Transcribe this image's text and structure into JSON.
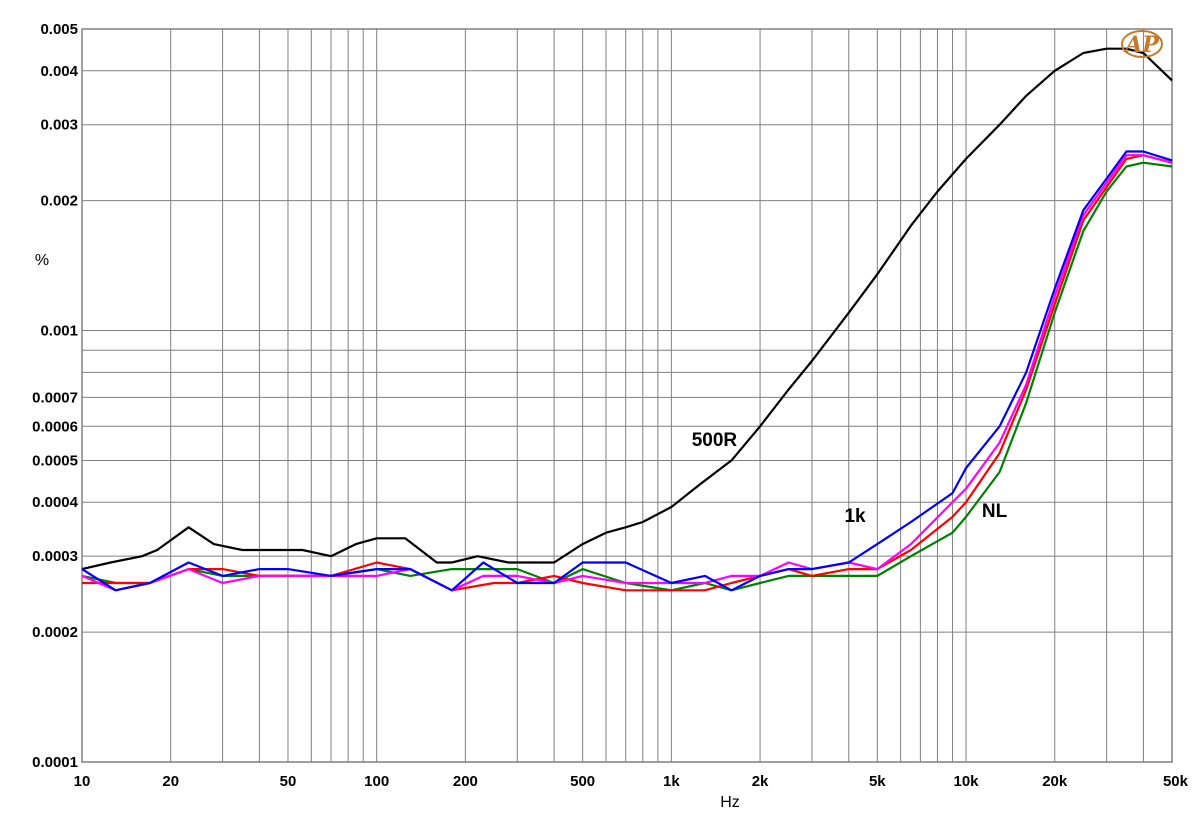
{
  "chart_data": {
    "type": "line",
    "title": "",
    "xlabel": "Hz",
    "ylabel": "%",
    "x_scale": "log",
    "y_scale": "log",
    "xlim": [
      10,
      50000
    ],
    "ylim": [
      0.0001,
      0.005
    ],
    "grid": true,
    "legend": "none",
    "x_ticks": [
      {
        "value": 10,
        "label": "10"
      },
      {
        "value": 20,
        "label": "20"
      },
      {
        "value": 50,
        "label": "50"
      },
      {
        "value": 100,
        "label": "100"
      },
      {
        "value": 200,
        "label": "200"
      },
      {
        "value": 500,
        "label": "500"
      },
      {
        "value": 1000,
        "label": "1k"
      },
      {
        "value": 2000,
        "label": "2k"
      },
      {
        "value": 5000,
        "label": "5k"
      },
      {
        "value": 10000,
        "label": "10k"
      },
      {
        "value": 20000,
        "label": "20k"
      },
      {
        "value": 50000,
        "label": "50k"
      }
    ],
    "y_ticks": [
      {
        "value": 0.005,
        "label": "0.005"
      },
      {
        "value": 0.004,
        "label": "0.004"
      },
      {
        "value": 0.003,
        "label": "0.003"
      },
      {
        "value": 0.002,
        "label": "0.002"
      },
      {
        "value": 0.001,
        "label": "0.001"
      },
      {
        "value": 0.0007,
        "label": "0.0007"
      },
      {
        "value": 0.0006,
        "label": "0.0006"
      },
      {
        "value": 0.0005,
        "label": "0.0005"
      },
      {
        "value": 0.0004,
        "label": "0.0004"
      },
      {
        "value": 0.0003,
        "label": "0.0003"
      },
      {
        "value": 0.0002,
        "label": "0.0002"
      },
      {
        "value": 0.0001,
        "label": "0.0001"
      }
    ],
    "series": [
      {
        "name": "500R",
        "color": "#000000",
        "x": [
          10,
          12.5,
          16,
          18,
          23,
          28,
          35,
          40,
          50,
          56,
          70,
          85,
          100,
          125,
          160,
          180,
          220,
          280,
          350,
          400,
          500,
          600,
          700,
          800,
          1000,
          1250,
          1600,
          2000,
          2500,
          3000,
          4000,
          5000,
          6500,
          8000,
          10000,
          13000,
          16000,
          20000,
          25000,
          30000,
          35000,
          40000,
          50000
        ],
        "y": [
          0.00028,
          0.00029,
          0.0003,
          0.00031,
          0.00035,
          0.00032,
          0.00031,
          0.00031,
          0.00031,
          0.00031,
          0.0003,
          0.00032,
          0.00033,
          0.00033,
          0.00029,
          0.00029,
          0.0003,
          0.00029,
          0.00029,
          0.00029,
          0.00032,
          0.00034,
          0.00035,
          0.00036,
          0.00039,
          0.00044,
          0.0005,
          0.0006,
          0.00073,
          0.00085,
          0.0011,
          0.00135,
          0.00175,
          0.0021,
          0.0025,
          0.003,
          0.0035,
          0.004,
          0.0044,
          0.0045,
          0.0045,
          0.0044,
          0.0038
        ]
      },
      {
        "name": "NL",
        "color": "#008000",
        "x": [
          10,
          13,
          17,
          23,
          30,
          40,
          50,
          70,
          100,
          130,
          180,
          250,
          300,
          400,
          500,
          700,
          1000,
          1300,
          1600,
          2000,
          2500,
          3000,
          4000,
          5000,
          6500,
          9000,
          10000,
          13000,
          16000,
          20000,
          25000,
          30000,
          35000,
          40000,
          50000
        ],
        "y": [
          0.00027,
          0.00026,
          0.00026,
          0.00028,
          0.00027,
          0.00027,
          0.00027,
          0.00027,
          0.00028,
          0.00027,
          0.00028,
          0.00028,
          0.00028,
          0.00026,
          0.00028,
          0.00026,
          0.00025,
          0.00026,
          0.00025,
          0.00026,
          0.00027,
          0.00027,
          0.00027,
          0.00027,
          0.0003,
          0.00034,
          0.00037,
          0.00047,
          0.00068,
          0.0011,
          0.0017,
          0.0021,
          0.0024,
          0.00245,
          0.0024
        ]
      },
      {
        "name": "red",
        "color": "#ff0000",
        "x": [
          10,
          13,
          17,
          23,
          30,
          40,
          50,
          70,
          100,
          130,
          180,
          250,
          300,
          400,
          500,
          700,
          1000,
          1300,
          1600,
          2000,
          2500,
          3000,
          4000,
          5000,
          6500,
          9000,
          10000,
          13000,
          16000,
          20000,
          25000,
          30000,
          35000,
          40000,
          50000
        ],
        "y": [
          0.00026,
          0.00026,
          0.00026,
          0.00028,
          0.00028,
          0.00027,
          0.00027,
          0.00027,
          0.00029,
          0.00028,
          0.00025,
          0.00026,
          0.00026,
          0.00027,
          0.00026,
          0.00025,
          0.00025,
          0.00025,
          0.00026,
          0.00027,
          0.00028,
          0.00027,
          0.00028,
          0.00028,
          0.00031,
          0.00037,
          0.0004,
          0.00052,
          0.00073,
          0.00115,
          0.0018,
          0.00215,
          0.0025,
          0.00255,
          0.00245
        ]
      },
      {
        "name": "magenta",
        "color": "#ff00ff",
        "x": [
          10,
          13,
          17,
          23,
          30,
          40,
          50,
          70,
          100,
          130,
          180,
          230,
          300,
          400,
          500,
          700,
          1000,
          1300,
          1600,
          2000,
          2500,
          3000,
          4000,
          5000,
          6500,
          9000,
          10000,
          13000,
          16000,
          20000,
          25000,
          30000,
          35000,
          40000,
          50000
        ],
        "y": [
          0.00027,
          0.00025,
          0.00026,
          0.00028,
          0.00026,
          0.00027,
          0.00027,
          0.00027,
          0.00027,
          0.00028,
          0.00025,
          0.00027,
          0.00027,
          0.00026,
          0.00027,
          0.00026,
          0.00026,
          0.00026,
          0.00027,
          0.00027,
          0.00029,
          0.00028,
          0.00029,
          0.00028,
          0.00032,
          0.0004,
          0.00043,
          0.00055,
          0.00075,
          0.0012,
          0.00185,
          0.0022,
          0.00255,
          0.00255,
          0.00245
        ]
      },
      {
        "name": "1k",
        "color": "#0000ff",
        "x": [
          10,
          13,
          17,
          23,
          30,
          40,
          50,
          70,
          100,
          130,
          180,
          230,
          300,
          400,
          500,
          700,
          1000,
          1300,
          1600,
          2000,
          2500,
          3000,
          4000,
          5000,
          6500,
          9000,
          10000,
          13000,
          16000,
          20000,
          25000,
          30000,
          35000,
          40000,
          50000
        ],
        "y": [
          0.00028,
          0.00025,
          0.00026,
          0.00029,
          0.00027,
          0.00028,
          0.00028,
          0.00027,
          0.00028,
          0.00028,
          0.00025,
          0.00029,
          0.00026,
          0.00026,
          0.00029,
          0.00029,
          0.00026,
          0.00027,
          0.00025,
          0.00027,
          0.00028,
          0.00028,
          0.00029,
          0.00032,
          0.00036,
          0.00042,
          0.00048,
          0.0006,
          0.0008,
          0.00125,
          0.0019,
          0.00225,
          0.0026,
          0.0026,
          0.00248
        ]
      }
    ],
    "annotations": [
      {
        "text": "500R",
        "x": 1400,
        "y": 0.00054
      },
      {
        "text": "1k",
        "x": 4200,
        "y": 0.00036
      },
      {
        "text": "NL",
        "x": 12500,
        "y": 0.00037
      }
    ],
    "logo": {
      "text": "AP",
      "color": "#c47a2c"
    }
  }
}
